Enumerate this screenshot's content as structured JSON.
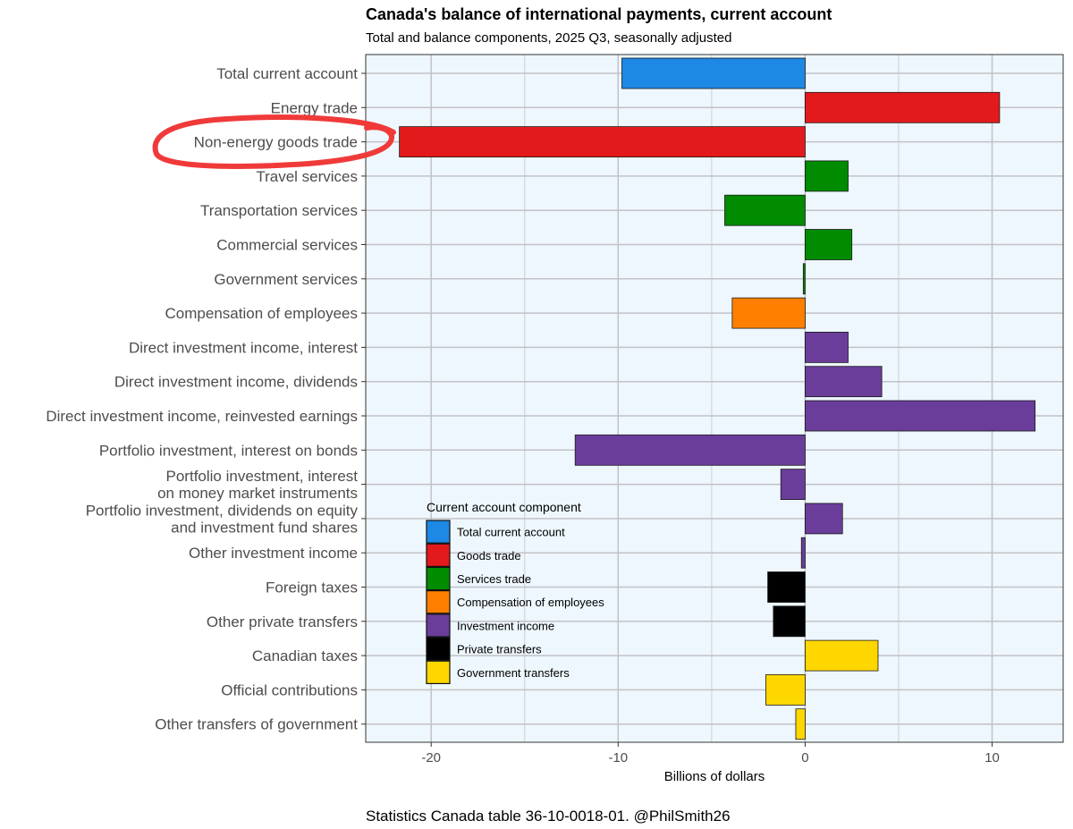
{
  "chart_data": {
    "type": "bar",
    "orientation": "horizontal",
    "title": "Canada's balance of international payments, current account",
    "subtitle": "Total and balance components, 2025 Q3, seasonally adjusted",
    "xlabel": "Billions of dollars",
    "ylabel": "",
    "xlim": [
      -23.5,
      13.8
    ],
    "x_ticks": [
      -20,
      -10,
      0,
      10
    ],
    "x_tick_labels": [
      "-20",
      "-10",
      "0",
      "10"
    ],
    "grid": true,
    "legend_title": "Current account component",
    "legend_position": "bottom-left inside",
    "groups": [
      {
        "name": "Total current account",
        "color": "#1E88E5"
      },
      {
        "name": "Goods trade",
        "color": "#E31A1C"
      },
      {
        "name": "Services trade",
        "color": "#008B00"
      },
      {
        "name": "Compensation of employees",
        "color": "#FF7F00"
      },
      {
        "name": "Investment income",
        "color": "#6A3D9A"
      },
      {
        "name": "Private transfers",
        "color": "#000000"
      },
      {
        "name": "Government transfers",
        "color": "#FFD700"
      }
    ],
    "categories": [
      {
        "lines": [
          "Total current account"
        ],
        "value": -9.8,
        "group": 0
      },
      {
        "lines": [
          "Energy trade"
        ],
        "value": 10.4,
        "group": 1
      },
      {
        "lines": [
          "Non-energy goods trade"
        ],
        "value": -21.7,
        "group": 1
      },
      {
        "lines": [
          "Travel services"
        ],
        "value": 2.3,
        "group": 2
      },
      {
        "lines": [
          "Transportation services"
        ],
        "value": -4.3,
        "group": 2
      },
      {
        "lines": [
          "Commercial services"
        ],
        "value": 2.5,
        "group": 2
      },
      {
        "lines": [
          "Government services"
        ],
        "value": -0.1,
        "group": 2
      },
      {
        "lines": [
          "Compensation of employees"
        ],
        "value": -3.9,
        "group": 3
      },
      {
        "lines": [
          "Direct investment income, interest"
        ],
        "value": 2.3,
        "group": 4
      },
      {
        "lines": [
          "Direct investment income, dividends"
        ],
        "value": 4.1,
        "group": 4
      },
      {
        "lines": [
          "Direct investment income, reinvested earnings"
        ],
        "value": 12.3,
        "group": 4
      },
      {
        "lines": [
          "Portfolio investment, interest on bonds"
        ],
        "value": -12.3,
        "group": 4
      },
      {
        "lines": [
          "Portfolio investment, interest",
          "on money market instruments"
        ],
        "value": -1.3,
        "group": 4
      },
      {
        "lines": [
          "Portfolio investment, dividends on equity",
          "and investment fund shares"
        ],
        "value": 2.0,
        "group": 4
      },
      {
        "lines": [
          "Other investment income"
        ],
        "value": -0.2,
        "group": 4
      },
      {
        "lines": [
          "Foreign taxes"
        ],
        "value": -2.0,
        "group": 5
      },
      {
        "lines": [
          "Other private transfers"
        ],
        "value": -1.7,
        "group": 5
      },
      {
        "lines": [
          "Canadian taxes"
        ],
        "value": 3.9,
        "group": 6
      },
      {
        "lines": [
          "Official contributions"
        ],
        "value": -2.1,
        "group": 6
      },
      {
        "lines": [
          "Other transfers of government"
        ],
        "value": -0.5,
        "group": 6
      }
    ],
    "annotation": {
      "type": "hand-drawn-circle",
      "target": "Non-energy goods trade",
      "color": "#F03A3A"
    },
    "caption": "Statistics Canada table 36-10-0018-01. @PhilSmith26"
  }
}
